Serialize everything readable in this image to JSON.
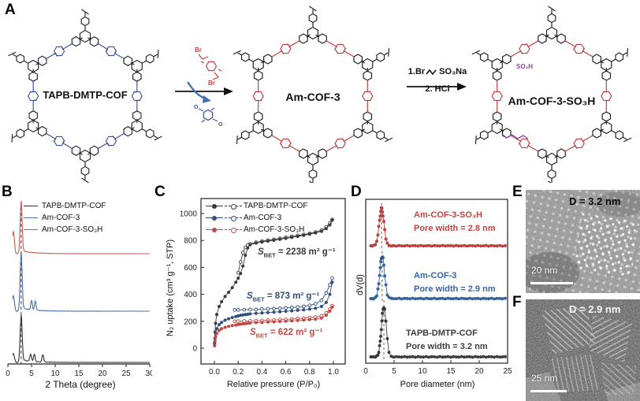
{
  "panel_labels": {
    "A": "A",
    "B": "B",
    "C": "C",
    "D": "D",
    "E": "E",
    "F": "F"
  },
  "panelA": {
    "structures": [
      {
        "name": "TAPB-DMTP-COF",
        "node_color": "#22252d",
        "linker_color": "#3c4fa1"
      },
      {
        "name": "Am-COF-3",
        "node_color": "#1c1c1c",
        "linker_color": "#c13a3a"
      },
      {
        "name": "Am-COF-3-SO₃H",
        "node_color": "#1c1c1c",
        "linker_color": "#c13a3a",
        "pendant_label": "SO₃H",
        "pendant_color": "#8e3fa8"
      }
    ],
    "reaction1": {
      "reagent_color": "#cc3f4a",
      "byproduct_color": "#3c4fa1",
      "curved_arrow_color": "#3f74b0",
      "reagent_atom_top": "Br",
      "reagent_atom_bottom": "Br",
      "byproduct_atom_left": "O",
      "byproduct_atom_right": "O"
    },
    "reaction2": {
      "step1_prefix": "1.Br",
      "step1_suffix": "SO₃Na",
      "step2": "2. HCl"
    }
  },
  "chart_data": [
    {
      "id": "xrd",
      "type": "line",
      "xlabel": "2 Theta (degree)",
      "ylabel": "",
      "xlim": [
        0,
        30
      ],
      "xticks": [
        0,
        5,
        10,
        15,
        20,
        25,
        30
      ],
      "dashed_guide_x": 2.8,
      "legend_position": "top-left",
      "grid": false,
      "series": [
        {
          "name": "TAPB-DMTP-COF",
          "color": "#2f2f2f",
          "peak_2theta": 2.8,
          "minor_peaks_2theta": [
            4.8,
            5.6,
            7.4
          ],
          "left_shoulder_rel": 0.2,
          "stack_order": "bottom"
        },
        {
          "name": "Am-COF-3",
          "color": "#4a6d9b",
          "peak_2theta": 2.8,
          "minor_peaks_2theta": [
            5.0,
            5.8
          ],
          "left_shoulder_rel": 0.28,
          "stack_order": "middle"
        },
        {
          "name": "Am-COF-3-SO₃H",
          "color": "#c65b52",
          "peak_2theta": 2.8,
          "minor_peaks_2theta": [],
          "left_shoulder_rel": 0.45,
          "stack_order": "top"
        }
      ]
    },
    {
      "id": "isotherm",
      "type": "scatter-line",
      "xlabel": "Relative pressure (P/P₀)",
      "ylabel": "N₂ uptake (cm³ g⁻¹, STP)",
      "xlim": [
        -0.05,
        1.05
      ],
      "ylim": [
        -70,
        1100
      ],
      "xticks": [
        "0.0",
        "0.2",
        "0.4",
        "0.6",
        "0.8",
        "1.0"
      ],
      "yticks": [
        0,
        200,
        400,
        600,
        800,
        1000
      ],
      "legend_position": "top-left",
      "grid": false,
      "series": [
        {
          "name": "TAPB-DMTP-COF",
          "color": "#3a3a3a",
          "adsorption": {
            "x": [
              0.002,
              0.005,
              0.01,
              0.02,
              0.04,
              0.06,
              0.09,
              0.12,
              0.15,
              0.18,
              0.2,
              0.22,
              0.24,
              0.26,
              0.28,
              0.3,
              0.35,
              0.4,
              0.45,
              0.5,
              0.55,
              0.6,
              0.65,
              0.7,
              0.75,
              0.8,
              0.85,
              0.9,
              0.94,
              0.97,
              0.99
            ],
            "y": [
              40,
              120,
              185,
              250,
              310,
              345,
              385,
              415,
              450,
              490,
              520,
              555,
              610,
              690,
              745,
              768,
              780,
              788,
              795,
              801,
              808,
              815,
              822,
              830,
              838,
              847,
              856,
              868,
              888,
              915,
              950
            ]
          },
          "desorption": {
            "x": [
              0.99,
              0.97,
              0.94,
              0.9,
              0.85,
              0.8,
              0.75,
              0.7,
              0.65,
              0.6,
              0.55,
              0.5,
              0.45,
              0.4,
              0.35,
              0.3,
              0.28,
              0.26,
              0.24,
              0.22,
              0.2
            ],
            "y": [
              955,
              930,
              900,
              876,
              862,
              852,
              844,
              836,
              829,
              822,
              815,
              808,
              801,
              794,
              786,
              775,
              765,
              748,
              710,
              640,
              560
            ]
          }
        },
        {
          "name": "Am-COF-3",
          "color": "#2d4e7e",
          "adsorption": {
            "x": [
              0.002,
              0.005,
              0.01,
              0.02,
              0.04,
              0.06,
              0.09,
              0.12,
              0.15,
              0.18,
              0.2,
              0.22,
              0.24,
              0.26,
              0.28,
              0.3,
              0.35,
              0.4,
              0.45,
              0.5,
              0.55,
              0.6,
              0.65,
              0.7,
              0.75,
              0.8,
              0.85,
              0.9,
              0.94,
              0.97,
              0.99
            ],
            "y": [
              25,
              75,
              110,
              145,
              175,
              192,
              208,
              219,
              228,
              235,
              240,
              244,
              247,
              250,
              252,
              255,
              259,
              262,
              265,
              268,
              271,
              274,
              277,
              281,
              285,
              290,
              297,
              310,
              340,
              400,
              490
            ]
          },
          "desorption": {
            "x": [
              0.99,
              0.97,
              0.94,
              0.9,
              0.85,
              0.8,
              0.75,
              0.7,
              0.65,
              0.6,
              0.55,
              0.5,
              0.45,
              0.4,
              0.35,
              0.3,
              0.25,
              0.2,
              0.17
            ],
            "y": [
              520,
              470,
              410,
              355,
              330,
              318,
              311,
              306,
              302,
              299,
              296,
              294,
              292,
              290,
              288,
              287,
              286,
              285,
              284
            ]
          }
        },
        {
          "name": "Am-COF-3-SO₃H",
          "color": "#c54742",
          "adsorption": {
            "x": [
              0.002,
              0.005,
              0.01,
              0.02,
              0.04,
              0.06,
              0.09,
              0.12,
              0.15,
              0.18,
              0.2,
              0.22,
              0.24,
              0.26,
              0.28,
              0.3,
              0.35,
              0.4,
              0.45,
              0.5,
              0.55,
              0.6,
              0.65,
              0.7,
              0.75,
              0.8,
              0.85,
              0.9,
              0.94,
              0.97,
              0.99
            ],
            "y": [
              18,
              55,
              85,
              110,
              132,
              145,
              155,
              162,
              168,
              172,
              176,
              179,
              181,
              183,
              185,
              187,
              190,
              192,
              194,
              196,
              198,
              200,
              203,
              206,
              209,
              212,
              216,
              224,
              245,
              275,
              305
            ]
          },
          "desorption": {
            "x": [
              0.99,
              0.97,
              0.94,
              0.9,
              0.85,
              0.8,
              0.75,
              0.7,
              0.65,
              0.6,
              0.55,
              0.5,
              0.45,
              0.4,
              0.35,
              0.3,
              0.25,
              0.2,
              0.17
            ],
            "y": [
              315,
              290,
              262,
              240,
              231,
              227,
              223,
              220,
              217,
              214,
              212,
              210,
              208,
              206,
              204,
              203,
              202,
              201,
              200
            ]
          }
        }
      ],
      "annotations": [
        {
          "s": "S",
          "sub": "BET",
          "rest": " = 2238 m² g⁻¹",
          "color": "#3a3a3a"
        },
        {
          "s": "S",
          "sub": "BET",
          "rest": " = 873 m² g⁻¹",
          "color": "#2d4e7e"
        },
        {
          "s": "S",
          "sub": "BET",
          "rest": " = 622 m² g⁻¹",
          "color": "#c54742"
        }
      ]
    },
    {
      "id": "pore",
      "type": "line-markers",
      "xlabel": "Pore diameter (nm)",
      "ylabel": "dV(d)",
      "xlim": [
        0,
        25
      ],
      "xticks": [
        0,
        5,
        10,
        15,
        20,
        25
      ],
      "grid": false,
      "series": [
        {
          "name": "Am-COF-3-SO₃H",
          "pore_width_nm": 2.8,
          "label_line2": "Pore width = 2.8 nm",
          "color": "#c8403c"
        },
        {
          "name": "Am-COF-3",
          "pore_width_nm": 2.9,
          "label_line2": "Pore width = 2.9 nm",
          "color": "#3465a4"
        },
        {
          "name": "TAPB-DMTP-COF",
          "pore_width_nm": 3.2,
          "label_line2": "Pore width = 3.2 nm",
          "color": "#3d3d3d"
        }
      ]
    }
  ],
  "panelE": {
    "measurement": "D = 3.2 nm",
    "scalebar": "20 nm"
  },
  "panelF": {
    "measurement": "D = 2.9 nm",
    "scalebar": "25 nm"
  }
}
